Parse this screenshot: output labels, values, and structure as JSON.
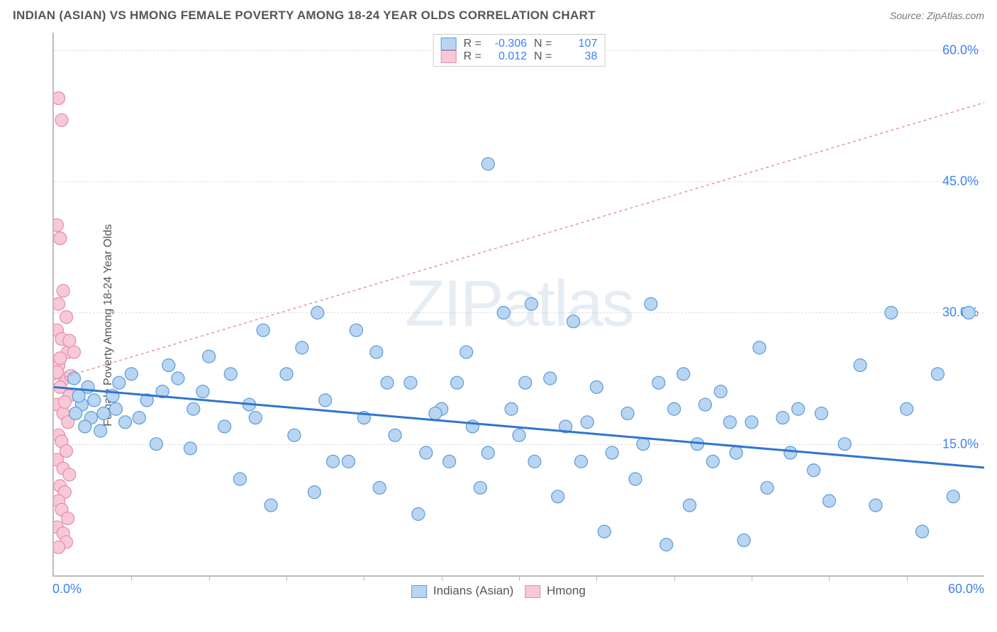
{
  "title": "INDIAN (ASIAN) VS HMONG FEMALE POVERTY AMONG 18-24 YEAR OLDS CORRELATION CHART",
  "source": "Source: ZipAtlas.com",
  "ylabel": "Female Poverty Among 18-24 Year Olds",
  "watermark": "ZIPatlas",
  "chart": {
    "type": "scatter",
    "xlim": [
      0,
      60
    ],
    "ylim": [
      0,
      62
    ],
    "y_ticks": [
      15,
      30,
      45,
      60
    ],
    "y_tick_labels": [
      "15.0%",
      "30.0%",
      "45.0%",
      "60.0%"
    ],
    "x_origin_label": "0.0%",
    "x_max_label": "60.0%",
    "x_tick_step": 5,
    "background_color": "#ffffff",
    "grid_color": "#dddddd",
    "axis_color": "#bbbbbb",
    "tick_label_color": "#3b82f6",
    "tick_fontsize": 18,
    "point_radius": 9,
    "point_stroke_width": 1.2,
    "series": [
      {
        "name": "Indians (Asian)",
        "fill": "#b9d5f2",
        "stroke": "#5a9bd8",
        "r": -0.306,
        "n": 107,
        "trend": {
          "x1": 0,
          "y1": 21.5,
          "x2": 60,
          "y2": 12.3,
          "color": "#2f74d0",
          "width": 3,
          "dash": "none"
        },
        "points": [
          [
            5.5,
            18
          ],
          [
            6,
            20
          ],
          [
            7,
            21
          ],
          [
            8,
            22.5
          ],
          [
            9,
            19
          ],
          [
            10,
            25
          ],
          [
            11,
            17
          ],
          [
            12,
            11
          ],
          [
            13,
            18
          ],
          [
            13.5,
            28
          ],
          [
            14,
            8
          ],
          [
            15,
            23
          ],
          [
            15.5,
            16
          ],
          [
            16,
            26
          ],
          [
            17,
            30
          ],
          [
            17.5,
            20
          ],
          [
            18,
            13
          ],
          [
            19,
            13
          ],
          [
            19.5,
            28
          ],
          [
            20,
            18
          ],
          [
            21,
            10
          ],
          [
            21.5,
            22
          ],
          [
            22,
            16
          ],
          [
            23,
            22
          ],
          [
            23.5,
            7
          ],
          [
            24,
            14
          ],
          [
            25,
            19
          ],
          [
            25.5,
            13
          ],
          [
            26,
            22
          ],
          [
            27,
            17
          ],
          [
            27.5,
            10
          ],
          [
            28,
            47
          ],
          [
            28,
            14
          ],
          [
            29,
            30
          ],
          [
            29.5,
            19
          ],
          [
            30,
            16
          ],
          [
            30.8,
            31
          ],
          [
            31,
            13
          ],
          [
            32,
            22.5
          ],
          [
            32.5,
            9
          ],
          [
            33,
            17
          ],
          [
            33.5,
            29
          ],
          [
            34,
            13
          ],
          [
            35,
            21.5
          ],
          [
            35.5,
            5
          ],
          [
            36,
            14
          ],
          [
            37,
            18.5
          ],
          [
            37.5,
            11
          ],
          [
            38,
            15
          ],
          [
            38.5,
            31
          ],
          [
            39,
            22
          ],
          [
            39.5,
            3.5
          ],
          [
            40,
            19
          ],
          [
            41,
            8
          ],
          [
            41.5,
            15
          ],
          [
            42,
            19.5
          ],
          [
            42.5,
            13
          ],
          [
            43,
            21
          ],
          [
            44,
            14
          ],
          [
            44.5,
            4
          ],
          [
            45,
            17.5
          ],
          [
            45.5,
            26
          ],
          [
            46,
            10
          ],
          [
            47,
            18
          ],
          [
            47.5,
            14
          ],
          [
            48,
            19
          ],
          [
            49,
            12
          ],
          [
            49.5,
            18.5
          ],
          [
            50,
            8.5
          ],
          [
            51,
            15
          ],
          [
            52,
            24
          ],
          [
            53,
            8
          ],
          [
            54,
            30
          ],
          [
            55,
            19
          ],
          [
            56,
            5
          ],
          [
            57,
            23
          ],
          [
            58,
            9
          ],
          [
            59,
            30
          ],
          [
            5,
            23
          ],
          [
            4,
            19
          ],
          [
            3.8,
            20.5
          ],
          [
            3.2,
            18.5
          ],
          [
            3,
            16.5
          ],
          [
            2.6,
            20
          ],
          [
            2.4,
            18
          ],
          [
            2.2,
            21.5
          ],
          [
            2,
            17
          ],
          [
            1.8,
            19.5
          ],
          [
            1.6,
            20.5
          ],
          [
            1.4,
            18.5
          ],
          [
            1.3,
            22.5
          ],
          [
            4.2,
            22
          ],
          [
            4.6,
            17.5
          ],
          [
            6.6,
            15
          ],
          [
            7.4,
            24
          ],
          [
            8.8,
            14.5
          ],
          [
            9.6,
            21
          ],
          [
            11.4,
            23
          ],
          [
            12.6,
            19.5
          ],
          [
            16.8,
            9.5
          ],
          [
            20.8,
            25.5
          ],
          [
            24.6,
            18.5
          ],
          [
            26.6,
            25.5
          ],
          [
            30.4,
            22
          ],
          [
            34.4,
            17.5
          ],
          [
            40.6,
            23
          ],
          [
            43.6,
            17.5
          ]
        ]
      },
      {
        "name": "Hmong",
        "fill": "#f7c9d7",
        "stroke": "#e88aa6",
        "r": 0.012,
        "n": 38,
        "trend": {
          "x1": 0,
          "y1": 22.3,
          "x2": 60,
          "y2": 54,
          "color": "#e88aa6",
          "width": 1.4,
          "dash": "4 4"
        },
        "points": [
          [
            0.3,
            54.5
          ],
          [
            0.5,
            52
          ],
          [
            0.2,
            40
          ],
          [
            0.4,
            38.5
          ],
          [
            0.6,
            32.5
          ],
          [
            0.3,
            31
          ],
          [
            0.8,
            29.5
          ],
          [
            0.2,
            28
          ],
          [
            0.5,
            27
          ],
          [
            0.9,
            25.5
          ],
          [
            0.3,
            24
          ],
          [
            0.7,
            22.5
          ],
          [
            0.4,
            21.5
          ],
          [
            1.0,
            20.5
          ],
          [
            0.2,
            19.5
          ],
          [
            0.6,
            18.5
          ],
          [
            0.9,
            17.5
          ],
          [
            0.3,
            16
          ],
          [
            0.5,
            15.3
          ],
          [
            0.8,
            14.2
          ],
          [
            0.2,
            13.2
          ],
          [
            0.6,
            12.2
          ],
          [
            1.0,
            11.5
          ],
          [
            0.4,
            10.2
          ],
          [
            0.7,
            9.5
          ],
          [
            0.3,
            8.5
          ],
          [
            0.5,
            7.5
          ],
          [
            0.9,
            6.5
          ],
          [
            0.2,
            5.5
          ],
          [
            0.6,
            4.8
          ],
          [
            0.8,
            3.8
          ],
          [
            0.3,
            3.2
          ],
          [
            1.1,
            22.8
          ],
          [
            1.3,
            25.5
          ],
          [
            1.0,
            26.8
          ],
          [
            0.7,
            19.8
          ],
          [
            0.4,
            24.8
          ],
          [
            0.2,
            23.2
          ]
        ]
      }
    ]
  },
  "legend_top": {
    "r_label": "R =",
    "n_label": "N ="
  },
  "legend_bottom": {
    "series1": "Indians (Asian)",
    "series2": "Hmong"
  }
}
